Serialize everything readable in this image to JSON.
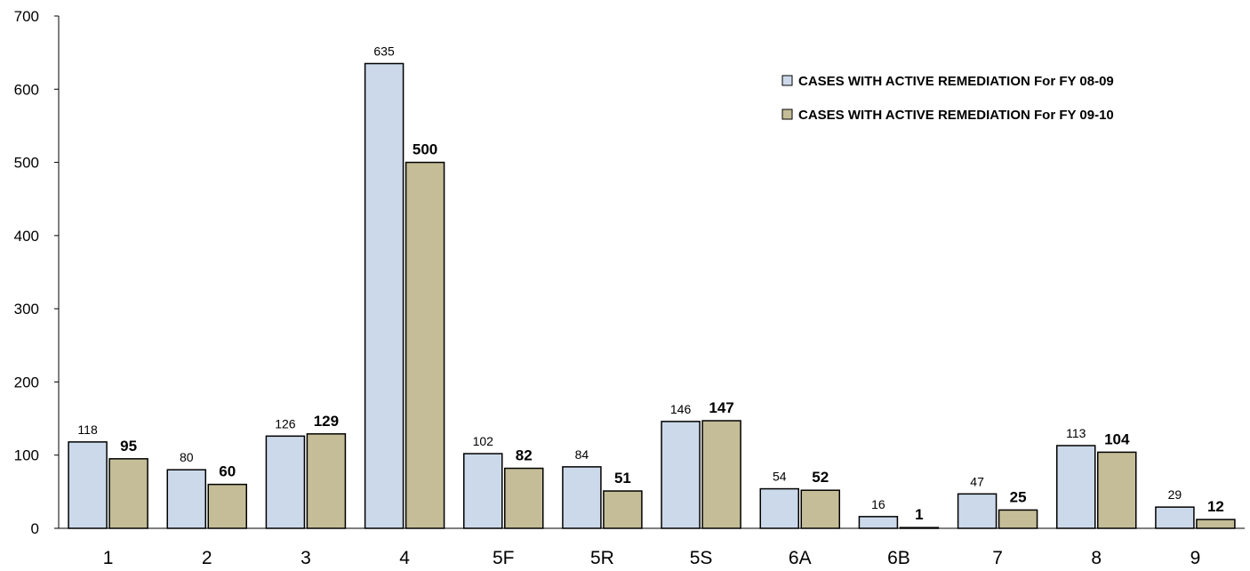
{
  "chart_data": {
    "type": "bar",
    "title": "",
    "xlabel": "",
    "ylabel": "",
    "categories": [
      "1",
      "2",
      "3",
      "4",
      "5F",
      "5R",
      "5S",
      "6A",
      "6B",
      "7",
      "8",
      "9"
    ],
    "series": [
      {
        "name": "CASES WITH ACTIVE REMEDIATION For FY 08-09",
        "values": [
          118,
          80,
          126,
          635,
          102,
          84,
          146,
          54,
          16,
          47,
          113,
          29
        ],
        "color": "#ccd9ea",
        "label_style": "normal"
      },
      {
        "name": "CASES WITH ACTIVE REMEDIATION For FY 09-10",
        "values": [
          95,
          60,
          129,
          500,
          82,
          51,
          147,
          52,
          1,
          25,
          104,
          12
        ],
        "color": "#c4bd97",
        "label_style": "bold"
      }
    ],
    "ylim": [
      0,
      700
    ],
    "yticks": [
      0,
      100,
      200,
      300,
      400,
      500,
      600,
      700
    ],
    "grid": false,
    "legend_position": "top-right",
    "bar_edge_color": "#000000"
  }
}
